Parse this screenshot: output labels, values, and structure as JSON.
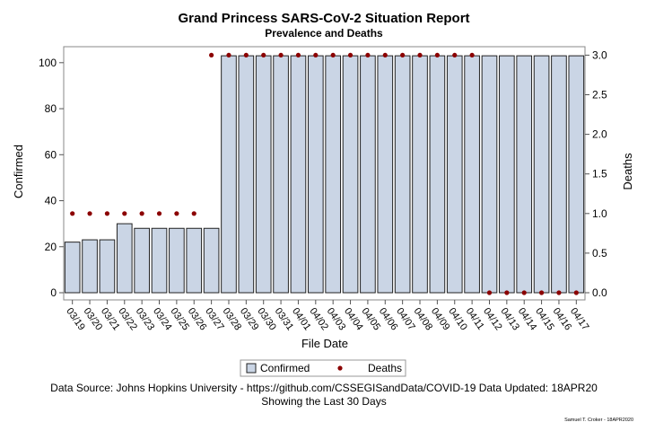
{
  "chart_data": {
    "type": "bar",
    "title": "Grand Princess SARS-CoV-2 Situation Report",
    "subtitle": "Prevalence and Deaths",
    "xlabel": "File Date",
    "ylabel": "Confirmed",
    "y2label": "Deaths",
    "ylim": [
      0,
      105
    ],
    "y2lim": [
      0,
      3.05
    ],
    "yticks": [
      "0",
      "20",
      "40",
      "60",
      "80",
      "100"
    ],
    "y2ticks": [
      "0.0",
      "0.5",
      "1.0",
      "1.5",
      "2.0",
      "2.5",
      "3.0"
    ],
    "categories": [
      "03/19",
      "03/20",
      "03/21",
      "03/22",
      "03/23",
      "03/24",
      "03/25",
      "03/26",
      "03/27",
      "03/28",
      "03/29",
      "03/30",
      "03/31",
      "04/01",
      "04/02",
      "04/03",
      "04/04",
      "04/05",
      "04/06",
      "04/07",
      "04/08",
      "04/09",
      "04/10",
      "04/11",
      "04/12",
      "04/13",
      "04/14",
      "04/15",
      "04/16",
      "04/17"
    ],
    "series": [
      {
        "name": "Confirmed",
        "kind": "bar",
        "axis": "left",
        "color": "#cad5e5",
        "values": [
          22,
          23,
          23,
          30,
          28,
          28,
          28,
          28,
          28,
          103,
          103,
          103,
          103,
          103,
          103,
          103,
          103,
          103,
          103,
          103,
          103,
          103,
          103,
          103,
          103,
          103,
          103,
          103,
          103,
          103
        ]
      },
      {
        "name": "Deaths",
        "kind": "scatter",
        "axis": "right",
        "color": "#8b0000",
        "values": [
          1,
          1,
          1,
          1,
          1,
          1,
          1,
          1,
          3,
          3,
          3,
          3,
          3,
          3,
          3,
          3,
          3,
          3,
          3,
          3,
          3,
          3,
          3,
          3,
          0,
          0,
          0,
          0,
          0,
          0
        ]
      }
    ],
    "legend": {
      "position": "bottom",
      "items": [
        "Confirmed",
        "Deaths"
      ]
    },
    "grid": false
  },
  "footnote_line1": "Data Source: Johns Hopkins University - https://github.com/CSSEGISandData/COVID-19 Data Updated: 18APR20",
  "footnote_line2": "Showing the Last 30 Days",
  "credit": "Samuel T. Croker - 18APR2020"
}
